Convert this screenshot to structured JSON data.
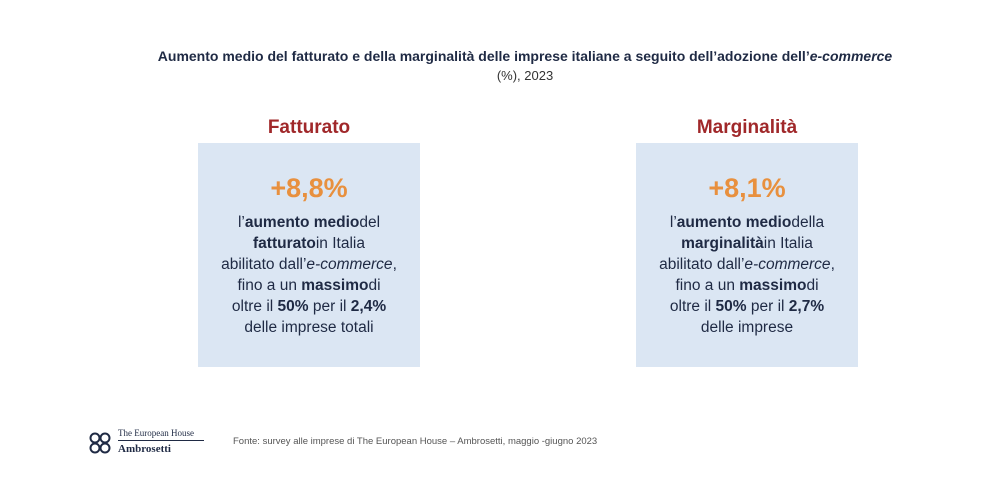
{
  "title": {
    "text": "Aumento medio del fatturato e della marginalità delle imprese italiane a seguito dell’adozione dell’",
    "italic": "e-commerce"
  },
  "subtitle": "(%), 2023",
  "panels": [
    {
      "heading": "Fatturato",
      "value": "+8,8%",
      "lines": [
        {
          "a": "l’",
          "b": "aumento medio",
          "c": "del"
        },
        {
          "a": "",
          "b": "fatturato",
          "c": "in Italia"
        },
        {
          "a": "abilitato dall’",
          "i": "e-commerce",
          "c": ","
        },
        {
          "a": "fino a un ",
          "b": "massimo",
          "c": "di"
        },
        {
          "a": "oltre il ",
          "b": "50%",
          "c": " per il ",
          "b2": "2,4%"
        },
        {
          "a": "delle imprese totali"
        }
      ]
    },
    {
      "heading": "Marginalità",
      "value": "+8,1%",
      "lines": [
        {
          "a": "l’",
          "b": "aumento medio",
          "c": "della"
        },
        {
          "a": "",
          "b": "marginalità",
          "c": "in Italia"
        },
        {
          "a": "abilitato dall’",
          "i": "e-commerce",
          "c": ","
        },
        {
          "a": "fino a un ",
          "b": "massimo",
          "c": "di"
        },
        {
          "a": "oltre il ",
          "b": "50%",
          "c": " per il ",
          "b2": "2,7%"
        },
        {
          "a": "delle imprese"
        }
      ]
    }
  ],
  "logo": {
    "line1": "The European House",
    "line2": "Ambrosetti"
  },
  "source": "Fonte: survey alle imprese di The European House – Ambrosetti, maggio -giugno 2023",
  "colors": {
    "heading": "#a0282a",
    "value": "#e8903e",
    "panel": "#dbe6f3",
    "text": "#1f2a44"
  }
}
